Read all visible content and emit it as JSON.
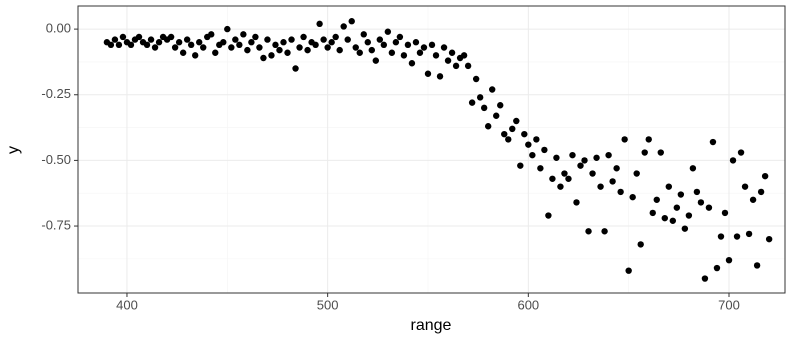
{
  "chart_data": {
    "type": "scatter",
    "x_label": "range",
    "y_label": "y",
    "color": "#000000",
    "xlim": [
      375.6,
      727.9
    ],
    "ylim": [
      -1.005,
      0.088
    ],
    "xticks": [
      400,
      500,
      600,
      700
    ],
    "yticks": [
      {
        "value": 0,
        "label": "0.00"
      },
      {
        "value": -0.25,
        "label": "-0.25"
      },
      {
        "value": -0.5,
        "label": "-0.50"
      },
      {
        "value": -0.75,
        "label": "-0.75"
      }
    ],
    "xminor": [
      450,
      550,
      650
    ],
    "yminor": [
      -0.125,
      -0.375,
      -0.625,
      -0.875
    ],
    "grid": true,
    "x": [
      390,
      392,
      394,
      396,
      398,
      400,
      402,
      404,
      406,
      408,
      410,
      412,
      414,
      416,
      418,
      420,
      422,
      424,
      426,
      428,
      430,
      432,
      434,
      436,
      438,
      440,
      442,
      444,
      446,
      448,
      450,
      452,
      454,
      456,
      458,
      460,
      462,
      464,
      466,
      468,
      470,
      472,
      474,
      476,
      478,
      480,
      482,
      484,
      486,
      488,
      490,
      492,
      494,
      496,
      498,
      500,
      502,
      504,
      506,
      508,
      510,
      512,
      514,
      516,
      518,
      520,
      522,
      524,
      526,
      528,
      530,
      532,
      534,
      536,
      538,
      540,
      542,
      544,
      546,
      548,
      550,
      552,
      554,
      556,
      558,
      560,
      562,
      564,
      566,
      568,
      570,
      572,
      574,
      576,
      578,
      580,
      582,
      584,
      586,
      588,
      590,
      592,
      594,
      596,
      598,
      600,
      602,
      604,
      606,
      608,
      610,
      612,
      614,
      616,
      618,
      620,
      622,
      624,
      626,
      628,
      630,
      632,
      634,
      636,
      638,
      640,
      642,
      644,
      646,
      648,
      650,
      652,
      654,
      656,
      658,
      660,
      662,
      664,
      666,
      668,
      670,
      672,
      674,
      676,
      678,
      680,
      682,
      684,
      686,
      688,
      690,
      692,
      694,
      696,
      698,
      700,
      702,
      704,
      706,
      708,
      710,
      712,
      714,
      716,
      718,
      720
    ],
    "values": [
      -0.05,
      -0.06,
      -0.04,
      -0.06,
      -0.03,
      -0.05,
      -0.06,
      -0.04,
      -0.03,
      -0.05,
      -0.06,
      -0.04,
      -0.07,
      -0.05,
      -0.03,
      -0.04,
      -0.03,
      -0.07,
      -0.05,
      -0.09,
      -0.04,
      -0.06,
      -0.1,
      -0.05,
      -0.07,
      -0.03,
      -0.02,
      -0.09,
      -0.06,
      -0.05,
      0.0,
      -0.07,
      -0.04,
      -0.06,
      -0.02,
      -0.08,
      -0.05,
      -0.03,
      -0.07,
      -0.11,
      -0.04,
      -0.1,
      -0.06,
      -0.08,
      -0.05,
      -0.09,
      -0.04,
      -0.15,
      -0.07,
      -0.03,
      -0.08,
      -0.05,
      -0.06,
      0.02,
      -0.04,
      -0.07,
      -0.05,
      -0.03,
      -0.08,
      0.01,
      -0.04,
      0.03,
      -0.07,
      -0.09,
      -0.02,
      -0.05,
      -0.08,
      -0.12,
      -0.04,
      -0.06,
      -0.01,
      -0.09,
      -0.05,
      -0.03,
      -0.1,
      -0.06,
      -0.13,
      -0.05,
      -0.09,
      -0.07,
      -0.17,
      -0.06,
      -0.1,
      -0.18,
      -0.07,
      -0.12,
      -0.09,
      -0.14,
      -0.11,
      -0.1,
      -0.14,
      -0.28,
      -0.19,
      -0.26,
      -0.3,
      -0.37,
      -0.23,
      -0.33,
      -0.29,
      -0.4,
      -0.42,
      -0.38,
      -0.35,
      -0.52,
      -0.4,
      -0.44,
      -0.48,
      -0.42,
      -0.53,
      -0.46,
      -0.71,
      -0.57,
      -0.49,
      -0.6,
      -0.55,
      -0.57,
      -0.48,
      -0.66,
      -0.52,
      -0.5,
      -0.77,
      -0.55,
      -0.49,
      -0.6,
      -0.77,
      -0.48,
      -0.58,
      -0.53,
      -0.62,
      -0.42,
      -0.92,
      -0.64,
      -0.55,
      -0.82,
      -0.47,
      -0.42,
      -0.7,
      -0.65,
      -0.47,
      -0.72,
      -0.6,
      -0.73,
      -0.68,
      -0.63,
      -0.76,
      -0.71,
      -0.53,
      -0.62,
      -0.66,
      -0.95,
      -0.68,
      -0.43,
      -0.91,
      -0.79,
      -0.7,
      -0.88,
      -0.5,
      -0.79,
      -0.47,
      -0.6,
      -0.78,
      -0.65,
      -0.9,
      -0.62,
      -0.56,
      -0.8
    ]
  }
}
